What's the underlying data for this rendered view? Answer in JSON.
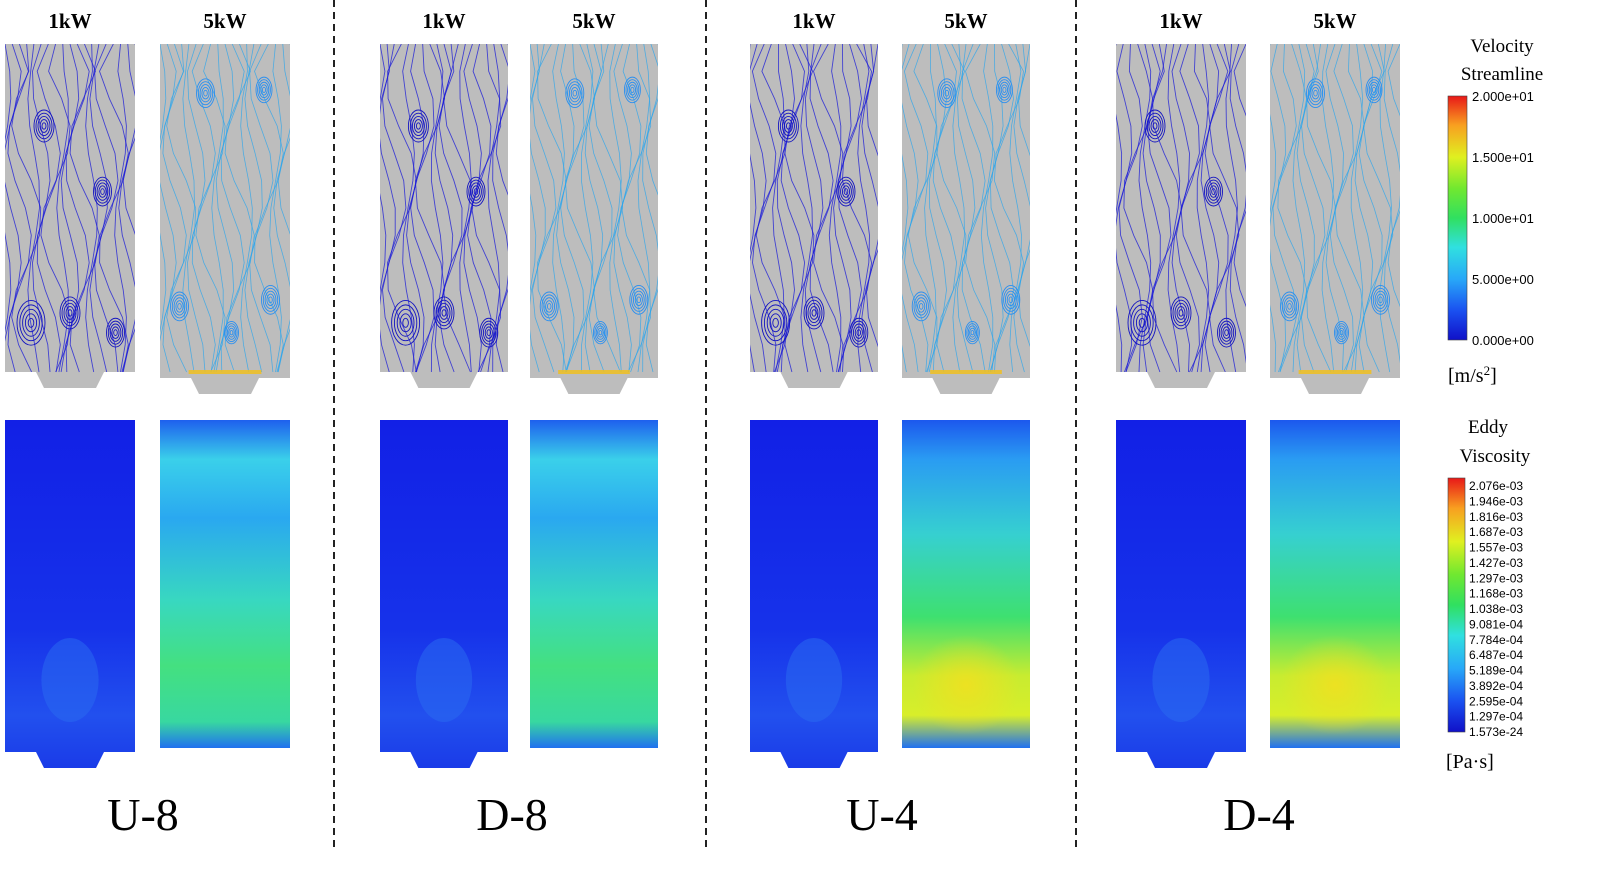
{
  "columns": {
    "low": "1kW",
    "high": "5kW"
  },
  "cases": [
    "U-8",
    "D-8",
    "U-4",
    "D-4"
  ],
  "legend_velocity": {
    "title_line1": "Velocity",
    "title_line2": "Streamline",
    "ticks": [
      "2.000e+01",
      "1.500e+01",
      "1.000e+01",
      "5.000e+00",
      "0.000e+00"
    ],
    "unit": "[m/s",
    "unit_sup": "2",
    "unit_end": "]"
  },
  "legend_eddy": {
    "title_line1": "Eddy",
    "title_line2": "Viscosity",
    "ticks": [
      "2.076e-03",
      "1.946e-03",
      "1.816e-03",
      "1.687e-03",
      "1.557e-03",
      "1.427e-03",
      "1.297e-03",
      "1.168e-03",
      "1.038e-03",
      "9.081e-04",
      "7.784e-04",
      "6.487e-04",
      "5.189e-04",
      "3.892e-04",
      "2.595e-04",
      "1.297e-04",
      "1.573e-24"
    ],
    "unit": "[Pa·s]"
  },
  "colors": {
    "grey": "#bdbdbd",
    "dark_blue": "#1a1ad8",
    "mid_blue": "#1e5cf2",
    "cyan": "#35c8f0",
    "green": "#2fe060",
    "yellow": "#e4f02a",
    "red": "#e02020"
  }
}
